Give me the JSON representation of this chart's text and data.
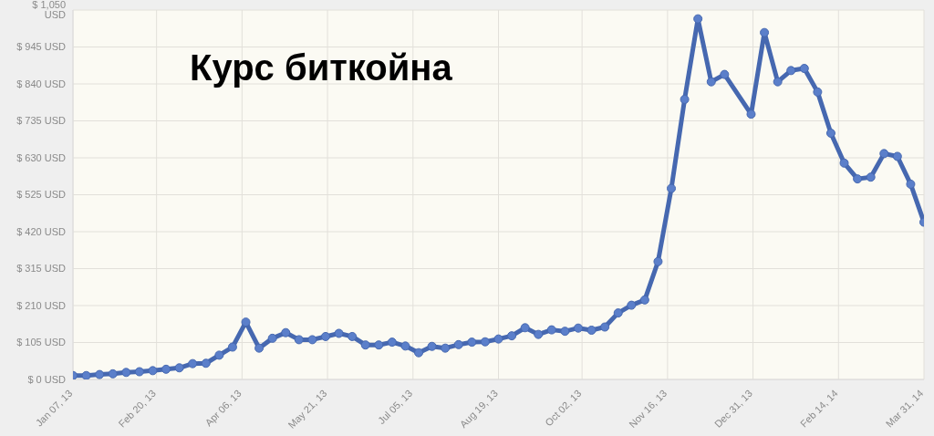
{
  "chart_data": {
    "type": "line",
    "title": "Курс биткойна",
    "x": [
      "2013-01-07",
      "2013-01-14",
      "2013-01-21",
      "2013-01-28",
      "2013-02-04",
      "2013-02-11",
      "2013-02-18",
      "2013-02-25",
      "2013-03-04",
      "2013-03-11",
      "2013-03-18",
      "2013-03-25",
      "2013-04-01",
      "2013-04-08",
      "2013-04-15",
      "2013-04-22",
      "2013-04-29",
      "2013-05-06",
      "2013-05-13",
      "2013-05-20",
      "2013-05-27",
      "2013-06-03",
      "2013-06-10",
      "2013-06-17",
      "2013-06-24",
      "2013-07-01",
      "2013-07-08",
      "2013-07-15",
      "2013-07-22",
      "2013-07-29",
      "2013-08-05",
      "2013-08-12",
      "2013-08-19",
      "2013-08-26",
      "2013-09-02",
      "2013-09-09",
      "2013-09-16",
      "2013-09-23",
      "2013-09-30",
      "2013-10-07",
      "2013-10-14",
      "2013-10-21",
      "2013-10-28",
      "2013-11-04",
      "2013-11-11",
      "2013-11-18",
      "2013-11-25",
      "2013-12-02",
      "2013-12-09",
      "2013-12-16",
      "2013-12-30",
      "2014-01-06",
      "2014-01-13",
      "2014-01-20",
      "2014-01-27",
      "2014-02-03",
      "2014-02-10",
      "2014-02-17",
      "2014-02-24",
      "2014-03-03",
      "2014-03-10",
      "2014-03-17",
      "2014-03-24",
      "2014-03-31"
    ],
    "series": [
      {
        "color": "#4668b0",
        "values": [
          11,
          11,
          14,
          16,
          20,
          22,
          25,
          29,
          33,
          45,
          46,
          69,
          92,
          163,
          89,
          117,
          133,
          113,
          113,
          122,
          131,
          122,
          98,
          98,
          106,
          95,
          76,
          94,
          89,
          99,
          106,
          107,
          115,
          124,
          147,
          128,
          141,
          137,
          146,
          140,
          149,
          189,
          211,
          226,
          335,
          543,
          796,
          1025,
          846,
          867,
          754,
          986,
          846,
          878,
          884,
          817,
          700,
          615,
          570,
          575,
          642,
          634,
          555,
          447
        ]
      }
    ],
    "xlim": [
      "2013-01-07",
      "2014-03-31"
    ],
    "xticks": [
      {
        "value": "2013-01-07",
        "label": "Jan 07, 13"
      },
      {
        "value": "2013-02-20",
        "label": "Feb 20, 13"
      },
      {
        "value": "2013-04-06",
        "label": "Apr 06, 13"
      },
      {
        "value": "2013-05-21",
        "label": "May 21, 13"
      },
      {
        "value": "2013-07-05",
        "label": "Jul 05, 13"
      },
      {
        "value": "2013-08-19",
        "label": "Aug 19, 13"
      },
      {
        "value": "2013-10-02",
        "label": "Oct 02, 13"
      },
      {
        "value": "2013-11-16",
        "label": "Nov 16, 13"
      },
      {
        "value": "2013-12-31",
        "label": "Dec 31, 13"
      },
      {
        "value": "2014-02-14",
        "label": "Feb 14, 14"
      },
      {
        "value": "2014-03-31",
        "label": "Mar 31, 14"
      }
    ],
    "ylim": [
      0,
      1050
    ],
    "yticks": [
      {
        "value": 0,
        "label": "$ 0 USD"
      },
      {
        "value": 105,
        "label": "$ 105 USD"
      },
      {
        "value": 210,
        "label": "$ 210 USD"
      },
      {
        "value": 315,
        "label": "$ 315 USD"
      },
      {
        "value": 420,
        "label": "$ 420 USD"
      },
      {
        "value": 525,
        "label": "$ 525 USD"
      },
      {
        "value": 630,
        "label": "$ 630 USD"
      },
      {
        "value": 735,
        "label": "$ 735 USD"
      },
      {
        "value": 840,
        "label": "$ 840 USD"
      },
      {
        "value": 945,
        "label": "$ 945 USD"
      },
      {
        "value": 1050,
        "label": "$ 1,050 USD"
      }
    ],
    "grid": true,
    "marker": "circle",
    "line_style": "solid"
  }
}
